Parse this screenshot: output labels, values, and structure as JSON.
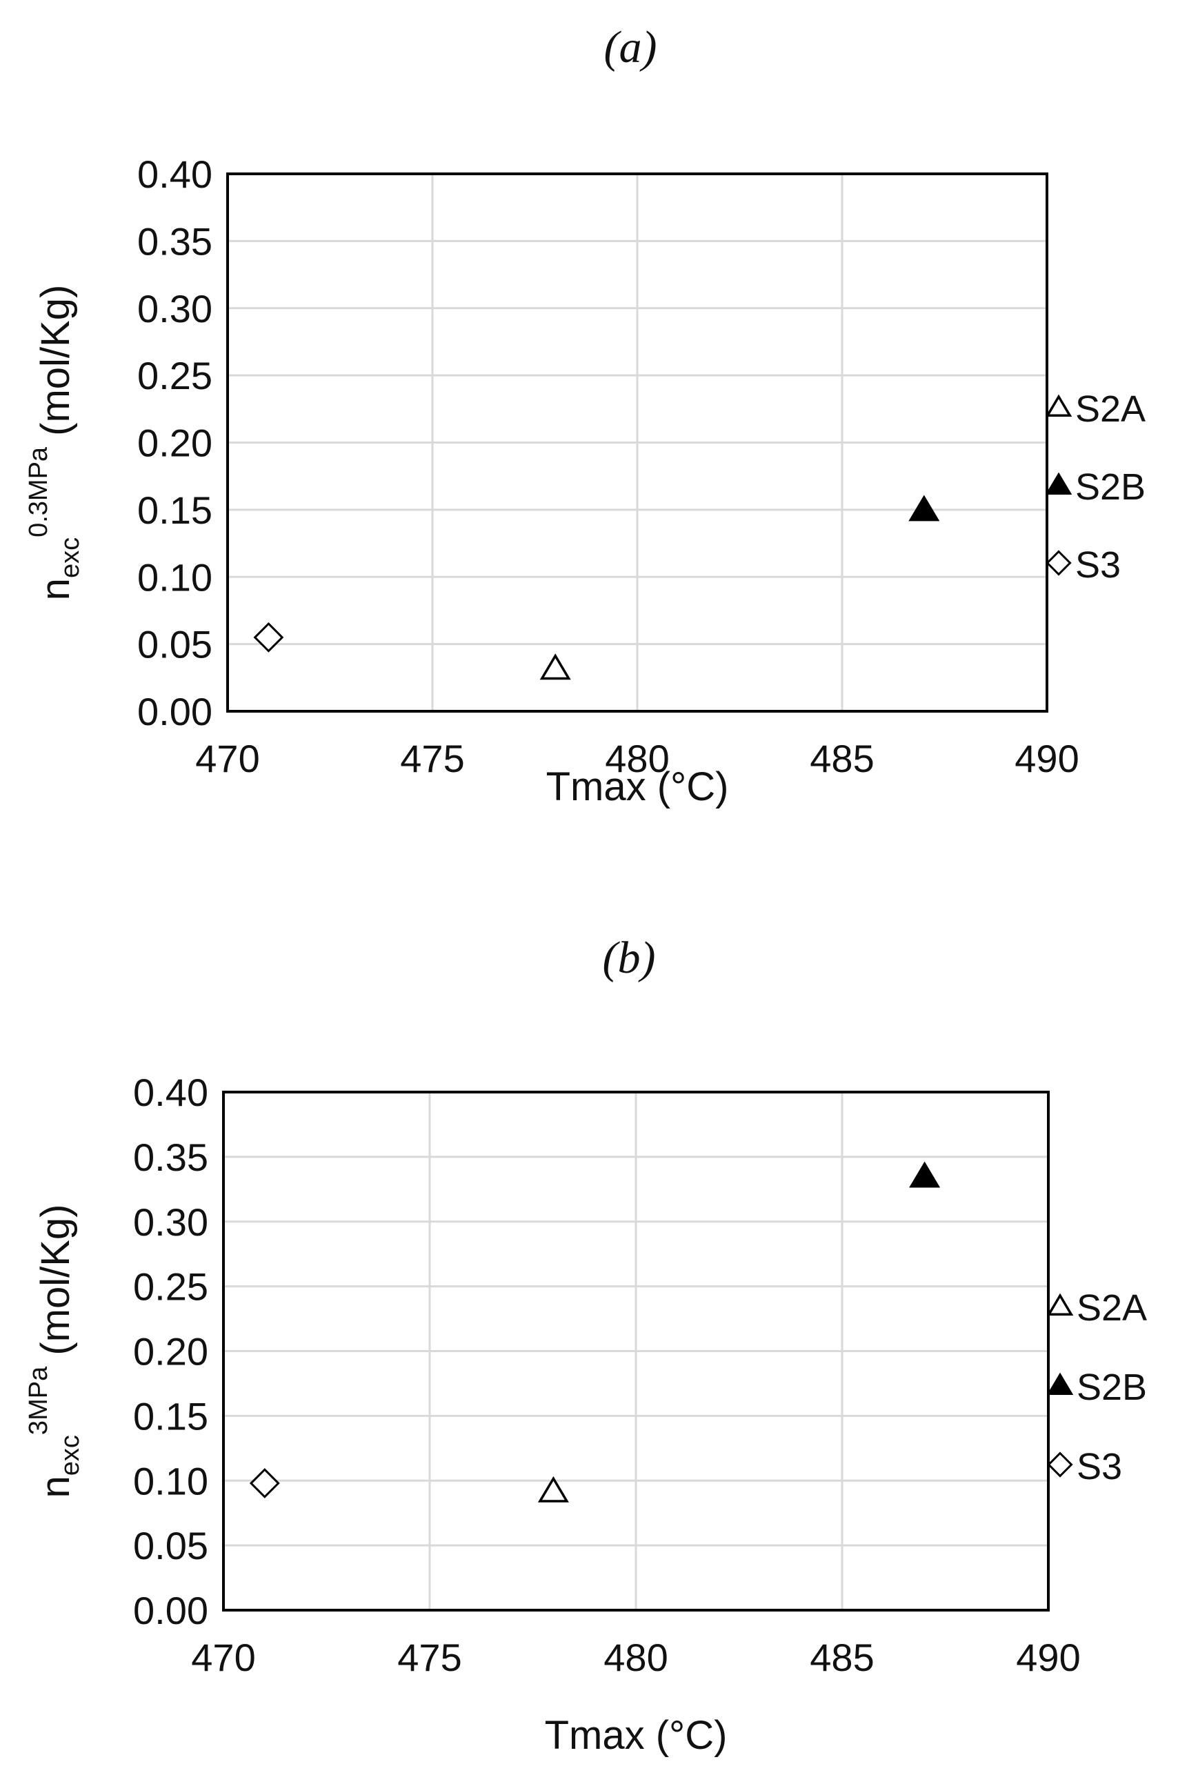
{
  "chart_data": [
    {
      "type": "scatter",
      "panel_label": "(a)",
      "xlabel": "Tmax (°C)",
      "ylabel": {
        "base": "n",
        "sub": "exc",
        "sup": "0.3MPa",
        "unit": " (mol/Kg)"
      },
      "xlim": [
        470,
        490
      ],
      "ylim": [
        0,
        0.4
      ],
      "x_ticks": [
        "470",
        "475",
        "480",
        "485",
        "490"
      ],
      "y_ticks": [
        "0.00",
        "0.05",
        "0.10",
        "0.15",
        "0.20",
        "0.25",
        "0.30",
        "0.35",
        "0.40"
      ],
      "grid": true,
      "legend_position": "right",
      "series": [
        {
          "name": "S2A",
          "marker": "triangle-open",
          "points": [
            {
              "x": 478,
              "y": 0.032
            }
          ]
        },
        {
          "name": "S2B",
          "marker": "triangle-filled",
          "points": [
            {
              "x": 487,
              "y": 0.15
            }
          ]
        },
        {
          "name": "S3",
          "marker": "diamond-open",
          "points": [
            {
              "x": 471,
              "y": 0.055
            }
          ]
        }
      ]
    },
    {
      "type": "scatter",
      "panel_label": "(b)",
      "xlabel": "Tmax (°C)",
      "ylabel": {
        "base": "n",
        "sub": "exc",
        "sup": "3MPa",
        "unit": " (mol/Kg)"
      },
      "xlim": [
        470,
        490
      ],
      "ylim": [
        0,
        0.4
      ],
      "x_ticks": [
        "470",
        "475",
        "480",
        "485",
        "490"
      ],
      "y_ticks": [
        "0.00",
        "0.05",
        "0.10",
        "0.15",
        "0.20",
        "0.25",
        "0.30",
        "0.35",
        "0.40"
      ],
      "grid": true,
      "legend_position": "right",
      "series": [
        {
          "name": "S2A",
          "marker": "triangle-open",
          "points": [
            {
              "x": 478,
              "y": 0.092
            }
          ]
        },
        {
          "name": "S2B",
          "marker": "triangle-filled",
          "points": [
            {
              "x": 487,
              "y": 0.335
            }
          ]
        },
        {
          "name": "S3",
          "marker": "diamond-open",
          "points": [
            {
              "x": 471,
              "y": 0.098
            }
          ]
        }
      ]
    }
  ],
  "colors": {
    "marker": "#000000",
    "grid": "#d9d9d9",
    "frame": "#000000"
  }
}
